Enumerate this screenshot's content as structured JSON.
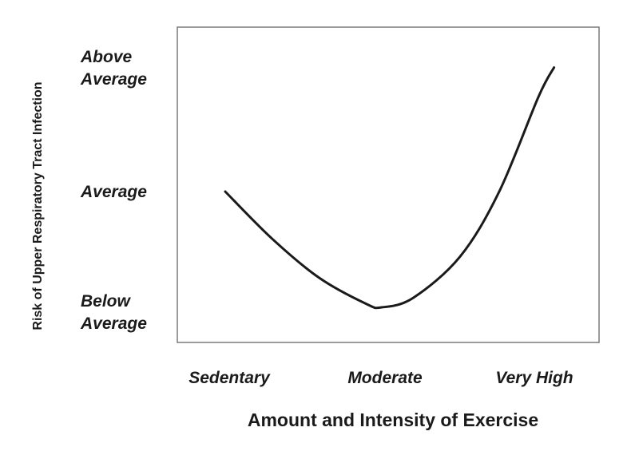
{
  "chart_data": {
    "type": "line",
    "xlabel": "Amount and Intensity of Exercise",
    "ylabel": "Risk of Upper Respiratory Tract Infection",
    "x_categories": [
      "Sedentary",
      "Moderate",
      "Very High"
    ],
    "y_categories": [
      {
        "lines": [
          "Below",
          "Average"
        ]
      },
      {
        "lines": [
          "Average"
        ]
      },
      {
        "lines": [
          "Above",
          "Average"
        ]
      }
    ],
    "series": [
      {
        "x": [
          0.0,
          0.3,
          0.6,
          0.9,
          1.0,
          1.2,
          1.5,
          1.75,
          2.0,
          2.1
        ],
        "y": [
          1.0,
          0.6,
          0.27,
          0.05,
          0.02,
          0.1,
          0.45,
          1.0,
          1.8,
          2.05
        ]
      }
    ],
    "grid": false,
    "legend": "none",
    "line_color": "#1a1a1a"
  }
}
